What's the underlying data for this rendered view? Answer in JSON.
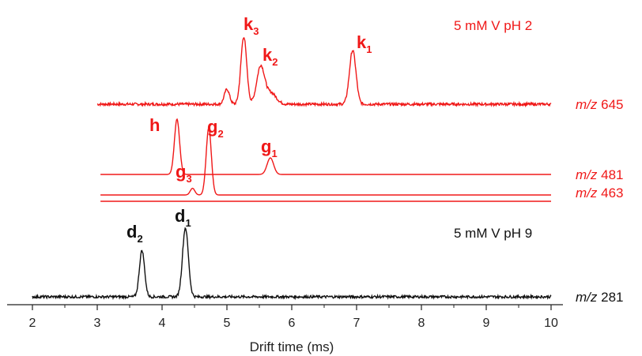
{
  "chart_data": {
    "type": "line",
    "xlabel": "Drift time (ms)",
    "ylabel": "",
    "xlim": [
      2,
      10
    ],
    "xticks": [
      "2",
      "3",
      "4",
      "5",
      "6",
      "7",
      "8",
      "9",
      "10"
    ],
    "grid": false,
    "colors": {
      "red": "#f01818",
      "black": "#111111"
    },
    "conditions": [
      {
        "label": "5 mM V pH 2",
        "color": "#f01818"
      },
      {
        "label": "5 mM V pH 9",
        "color": "#111111"
      }
    ],
    "series": [
      {
        "name": "m/z 645",
        "mz": "645",
        "color": "#f01818",
        "noise": true,
        "peaks": [
          {
            "x": 5.0,
            "h": 0.2,
            "w": 0.04,
            "tag": ""
          },
          {
            "x": 5.26,
            "h": 0.9,
            "w": 0.045,
            "tag": "k3"
          },
          {
            "x": 5.52,
            "h": 0.5,
            "w": 0.06,
            "tag": "k2"
          },
          {
            "x": 5.68,
            "h": 0.15,
            "w": 0.08,
            "tag": ""
          },
          {
            "x": 6.94,
            "h": 0.72,
            "w": 0.05,
            "tag": "k1"
          }
        ]
      },
      {
        "name": "m/z 481",
        "mz": "481",
        "color": "#f01818",
        "noise": false,
        "peaks": [
          {
            "x": 4.23,
            "h": 1.0,
            "w": 0.04,
            "tag": "h"
          },
          {
            "x": 5.67,
            "h": 0.3,
            "w": 0.05,
            "tag": "g1"
          }
        ]
      },
      {
        "name": "m/z 463",
        "mz": "463",
        "color": "#f01818",
        "noise": false,
        "peaks": [
          {
            "x": 4.47,
            "h": 0.1,
            "w": 0.035,
            "tag": "g3"
          },
          {
            "x": 4.72,
            "h": 1.0,
            "w": 0.04,
            "tag": "g2"
          }
        ]
      },
      {
        "name": "m/z 281",
        "mz": "281",
        "color": "#111111",
        "noise": true,
        "peaks": [
          {
            "x": 3.69,
            "h": 0.62,
            "w": 0.04,
            "tag": "d2"
          },
          {
            "x": 4.36,
            "h": 0.92,
            "w": 0.045,
            "tag": "d1"
          }
        ]
      }
    ],
    "annotations": [
      {
        "letter": "k",
        "sub": "3",
        "x": 5.26,
        "color": "#f01818"
      },
      {
        "letter": "k",
        "sub": "2",
        "x": 5.52,
        "color": "#f01818"
      },
      {
        "letter": "k",
        "sub": "1",
        "x": 6.94,
        "color": "#f01818"
      },
      {
        "letter": "h",
        "sub": "",
        "x": 4.23,
        "color": "#f01818"
      },
      {
        "letter": "g",
        "sub": "2",
        "x": 4.72,
        "color": "#f01818"
      },
      {
        "letter": "g",
        "sub": "3",
        "x": 4.47,
        "color": "#f01818"
      },
      {
        "letter": "g",
        "sub": "1",
        "x": 5.67,
        "color": "#f01818"
      },
      {
        "letter": "d",
        "sub": "2",
        "x": 3.69,
        "color": "#111111"
      },
      {
        "letter": "d",
        "sub": "1",
        "x": 4.36,
        "color": "#111111"
      }
    ]
  }
}
